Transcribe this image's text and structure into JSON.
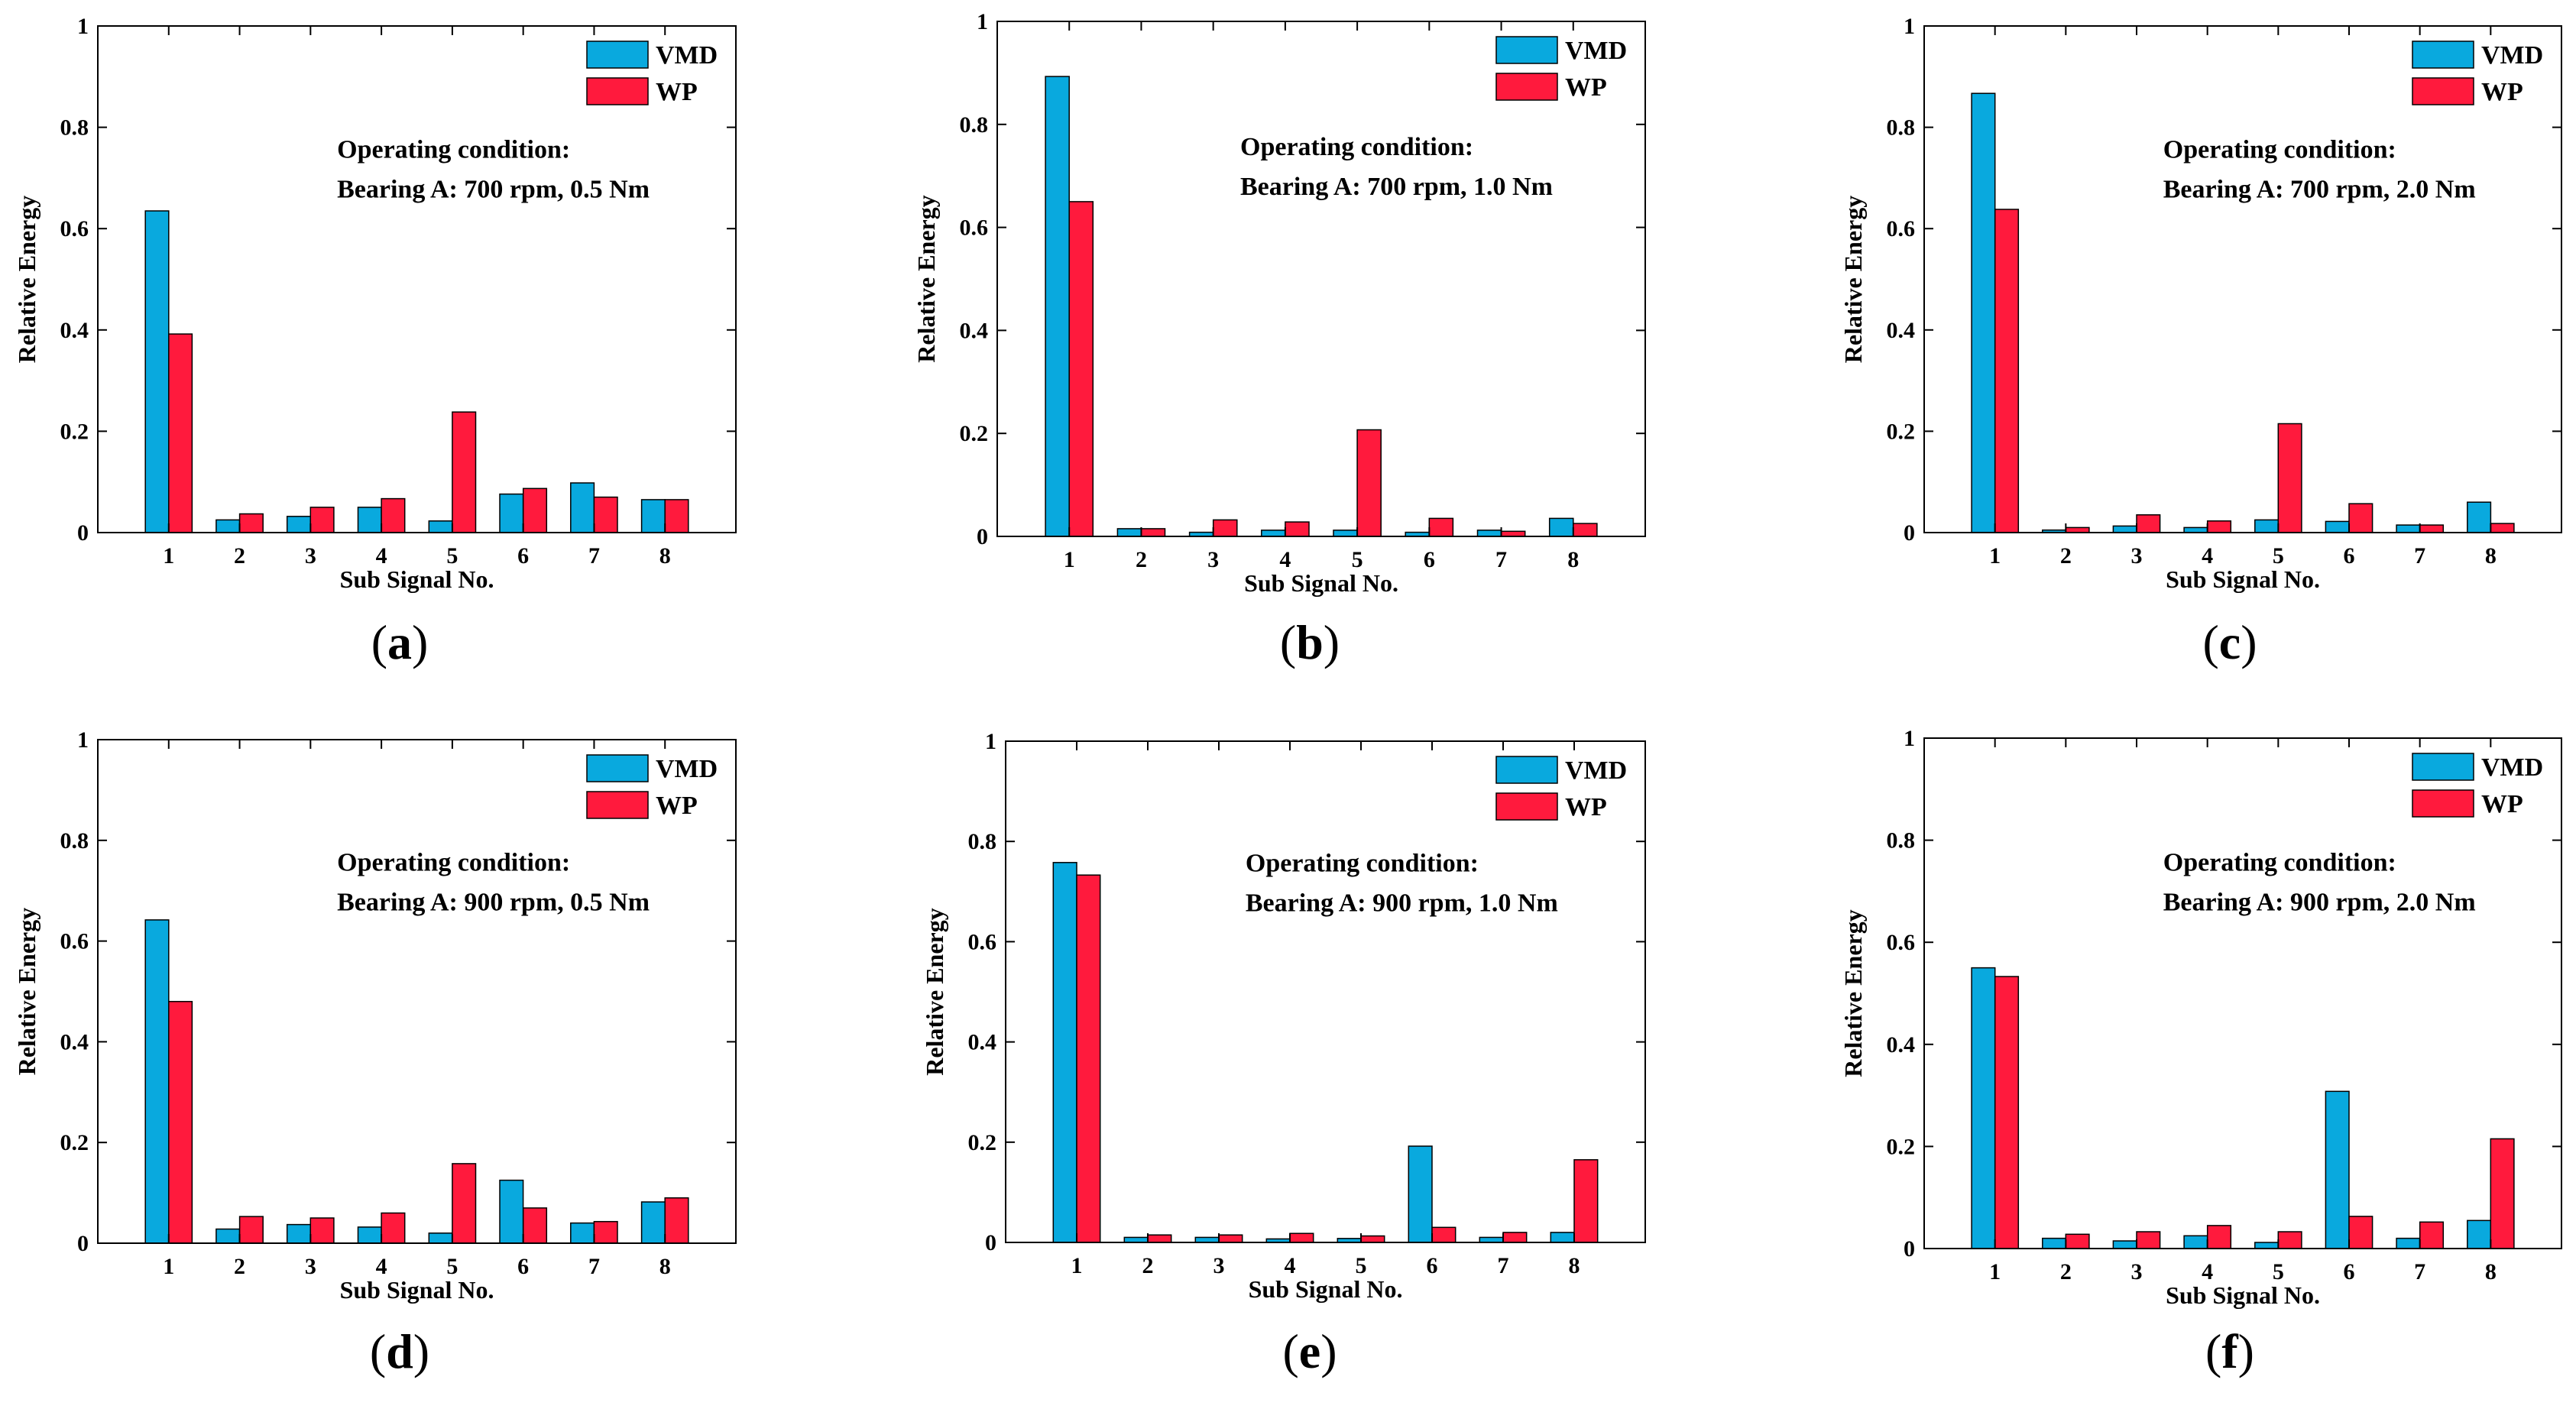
{
  "colors": {
    "vmd": "#09A9DE",
    "wp": "#FF1A3D"
  },
  "chart_data": [
    {
      "type": "bar",
      "panel_label": "a",
      "title": "",
      "xlabel": "Sub Signal No.",
      "ylabel": "Relative Energy",
      "categories": [
        "1",
        "2",
        "3",
        "4",
        "5",
        "6",
        "7",
        "8"
      ],
      "ylim": [
        0,
        1
      ],
      "yticks": [
        "0",
        "0.2",
        "0.4",
        "0.6",
        "0.8",
        "1"
      ],
      "legend_position": "top-right",
      "annotation": [
        "Operating condition:",
        "Bearing A: 700 rpm, 0.5 Nm"
      ],
      "series": [
        {
          "name": "VMD",
          "values": [
            0.635,
            0.025,
            0.032,
            0.05,
            0.023,
            0.076,
            0.098,
            0.065
          ]
        },
        {
          "name": "WP",
          "values": [
            0.392,
            0.037,
            0.05,
            0.067,
            0.238,
            0.087,
            0.07,
            0.065
          ]
        }
      ]
    },
    {
      "type": "bar",
      "panel_label": "b",
      "title": "",
      "xlabel": "Sub Signal No.",
      "ylabel": "Relative Energy",
      "categories": [
        "1",
        "2",
        "3",
        "4",
        "5",
        "6",
        "7",
        "8"
      ],
      "ylim": [
        0,
        1
      ],
      "yticks": [
        "0",
        "0.2",
        "0.4",
        "0.6",
        "0.8",
        "1"
      ],
      "legend_position": "top-right",
      "annotation": [
        "Operating condition:",
        "Bearing A: 700 rpm, 1.0 Nm"
      ],
      "series": [
        {
          "name": "VMD",
          "values": [
            0.893,
            0.015,
            0.008,
            0.012,
            0.012,
            0.008,
            0.012,
            0.035
          ]
        },
        {
          "name": "WP",
          "values": [
            0.65,
            0.015,
            0.032,
            0.028,
            0.207,
            0.035,
            0.01,
            0.025
          ]
        }
      ]
    },
    {
      "type": "bar",
      "panel_label": "c",
      "title": "",
      "xlabel": "Sub Signal No.",
      "ylabel": "Relative Energy",
      "categories": [
        "1",
        "2",
        "3",
        "4",
        "5",
        "6",
        "7",
        "8"
      ],
      "ylim": [
        0,
        1
      ],
      "yticks": [
        "0",
        "0.2",
        "0.4",
        "0.6",
        "0.8",
        "1"
      ],
      "legend_position": "top-right",
      "annotation": [
        "Operating condition:",
        "Bearing A: 700 rpm, 2.0 Nm"
      ],
      "series": [
        {
          "name": "VMD",
          "values": [
            0.867,
            0.005,
            0.013,
            0.01,
            0.025,
            0.022,
            0.015,
            0.06
          ]
        },
        {
          "name": "WP",
          "values": [
            0.638,
            0.01,
            0.035,
            0.023,
            0.215,
            0.057,
            0.015,
            0.018
          ]
        }
      ]
    },
    {
      "type": "bar",
      "panel_label": "d",
      "title": "",
      "xlabel": "Sub Signal No.",
      "ylabel": "Relative Energy",
      "categories": [
        "1",
        "2",
        "3",
        "4",
        "5",
        "6",
        "7",
        "8"
      ],
      "ylim": [
        0,
        1
      ],
      "yticks": [
        "0",
        "0.2",
        "0.4",
        "0.6",
        "0.8",
        "1"
      ],
      "legend_position": "top-right",
      "annotation": [
        "Operating condition:",
        "Bearing A: 900 rpm, 0.5 Nm"
      ],
      "series": [
        {
          "name": "VMD",
          "values": [
            0.642,
            0.028,
            0.037,
            0.032,
            0.02,
            0.125,
            0.04,
            0.082
          ]
        },
        {
          "name": "WP",
          "values": [
            0.48,
            0.053,
            0.05,
            0.06,
            0.158,
            0.07,
            0.043,
            0.09
          ]
        }
      ]
    },
    {
      "type": "bar",
      "panel_label": "e",
      "title": "",
      "xlabel": "Sub Signal No.",
      "ylabel": "Relative Energy",
      "categories": [
        "1",
        "2",
        "3",
        "4",
        "5",
        "6",
        "7",
        "8"
      ],
      "ylim": [
        0,
        1
      ],
      "yticks": [
        "0",
        "0.2",
        "0.4",
        "0.6",
        "0.8",
        "1"
      ],
      "legend_position": "top-right",
      "annotation": [
        "Operating condition:",
        "Bearing A: 900 rpm, 1.0 Nm"
      ],
      "series": [
        {
          "name": "VMD",
          "values": [
            0.758,
            0.01,
            0.01,
            0.007,
            0.008,
            0.192,
            0.01,
            0.02
          ]
        },
        {
          "name": "WP",
          "values": [
            0.733,
            0.015,
            0.015,
            0.018,
            0.013,
            0.03,
            0.02,
            0.165
          ]
        }
      ]
    },
    {
      "type": "bar",
      "panel_label": "f",
      "title": "",
      "xlabel": "Sub Signal No.",
      "ylabel": "Relative Energy",
      "categories": [
        "1",
        "2",
        "3",
        "4",
        "5",
        "6",
        "7",
        "8"
      ],
      "ylim": [
        0,
        1
      ],
      "yticks": [
        "0",
        "0.2",
        "0.4",
        "0.6",
        "0.8",
        "1"
      ],
      "legend_position": "top-right",
      "annotation": [
        "Operating condition:",
        "Bearing A: 900 rpm, 2.0 Nm"
      ],
      "series": [
        {
          "name": "VMD",
          "values": [
            0.55,
            0.02,
            0.015,
            0.025,
            0.012,
            0.308,
            0.02,
            0.055
          ]
        },
        {
          "name": "WP",
          "values": [
            0.533,
            0.028,
            0.033,
            0.045,
            0.033,
            0.063,
            0.052,
            0.215
          ]
        }
      ]
    }
  ]
}
